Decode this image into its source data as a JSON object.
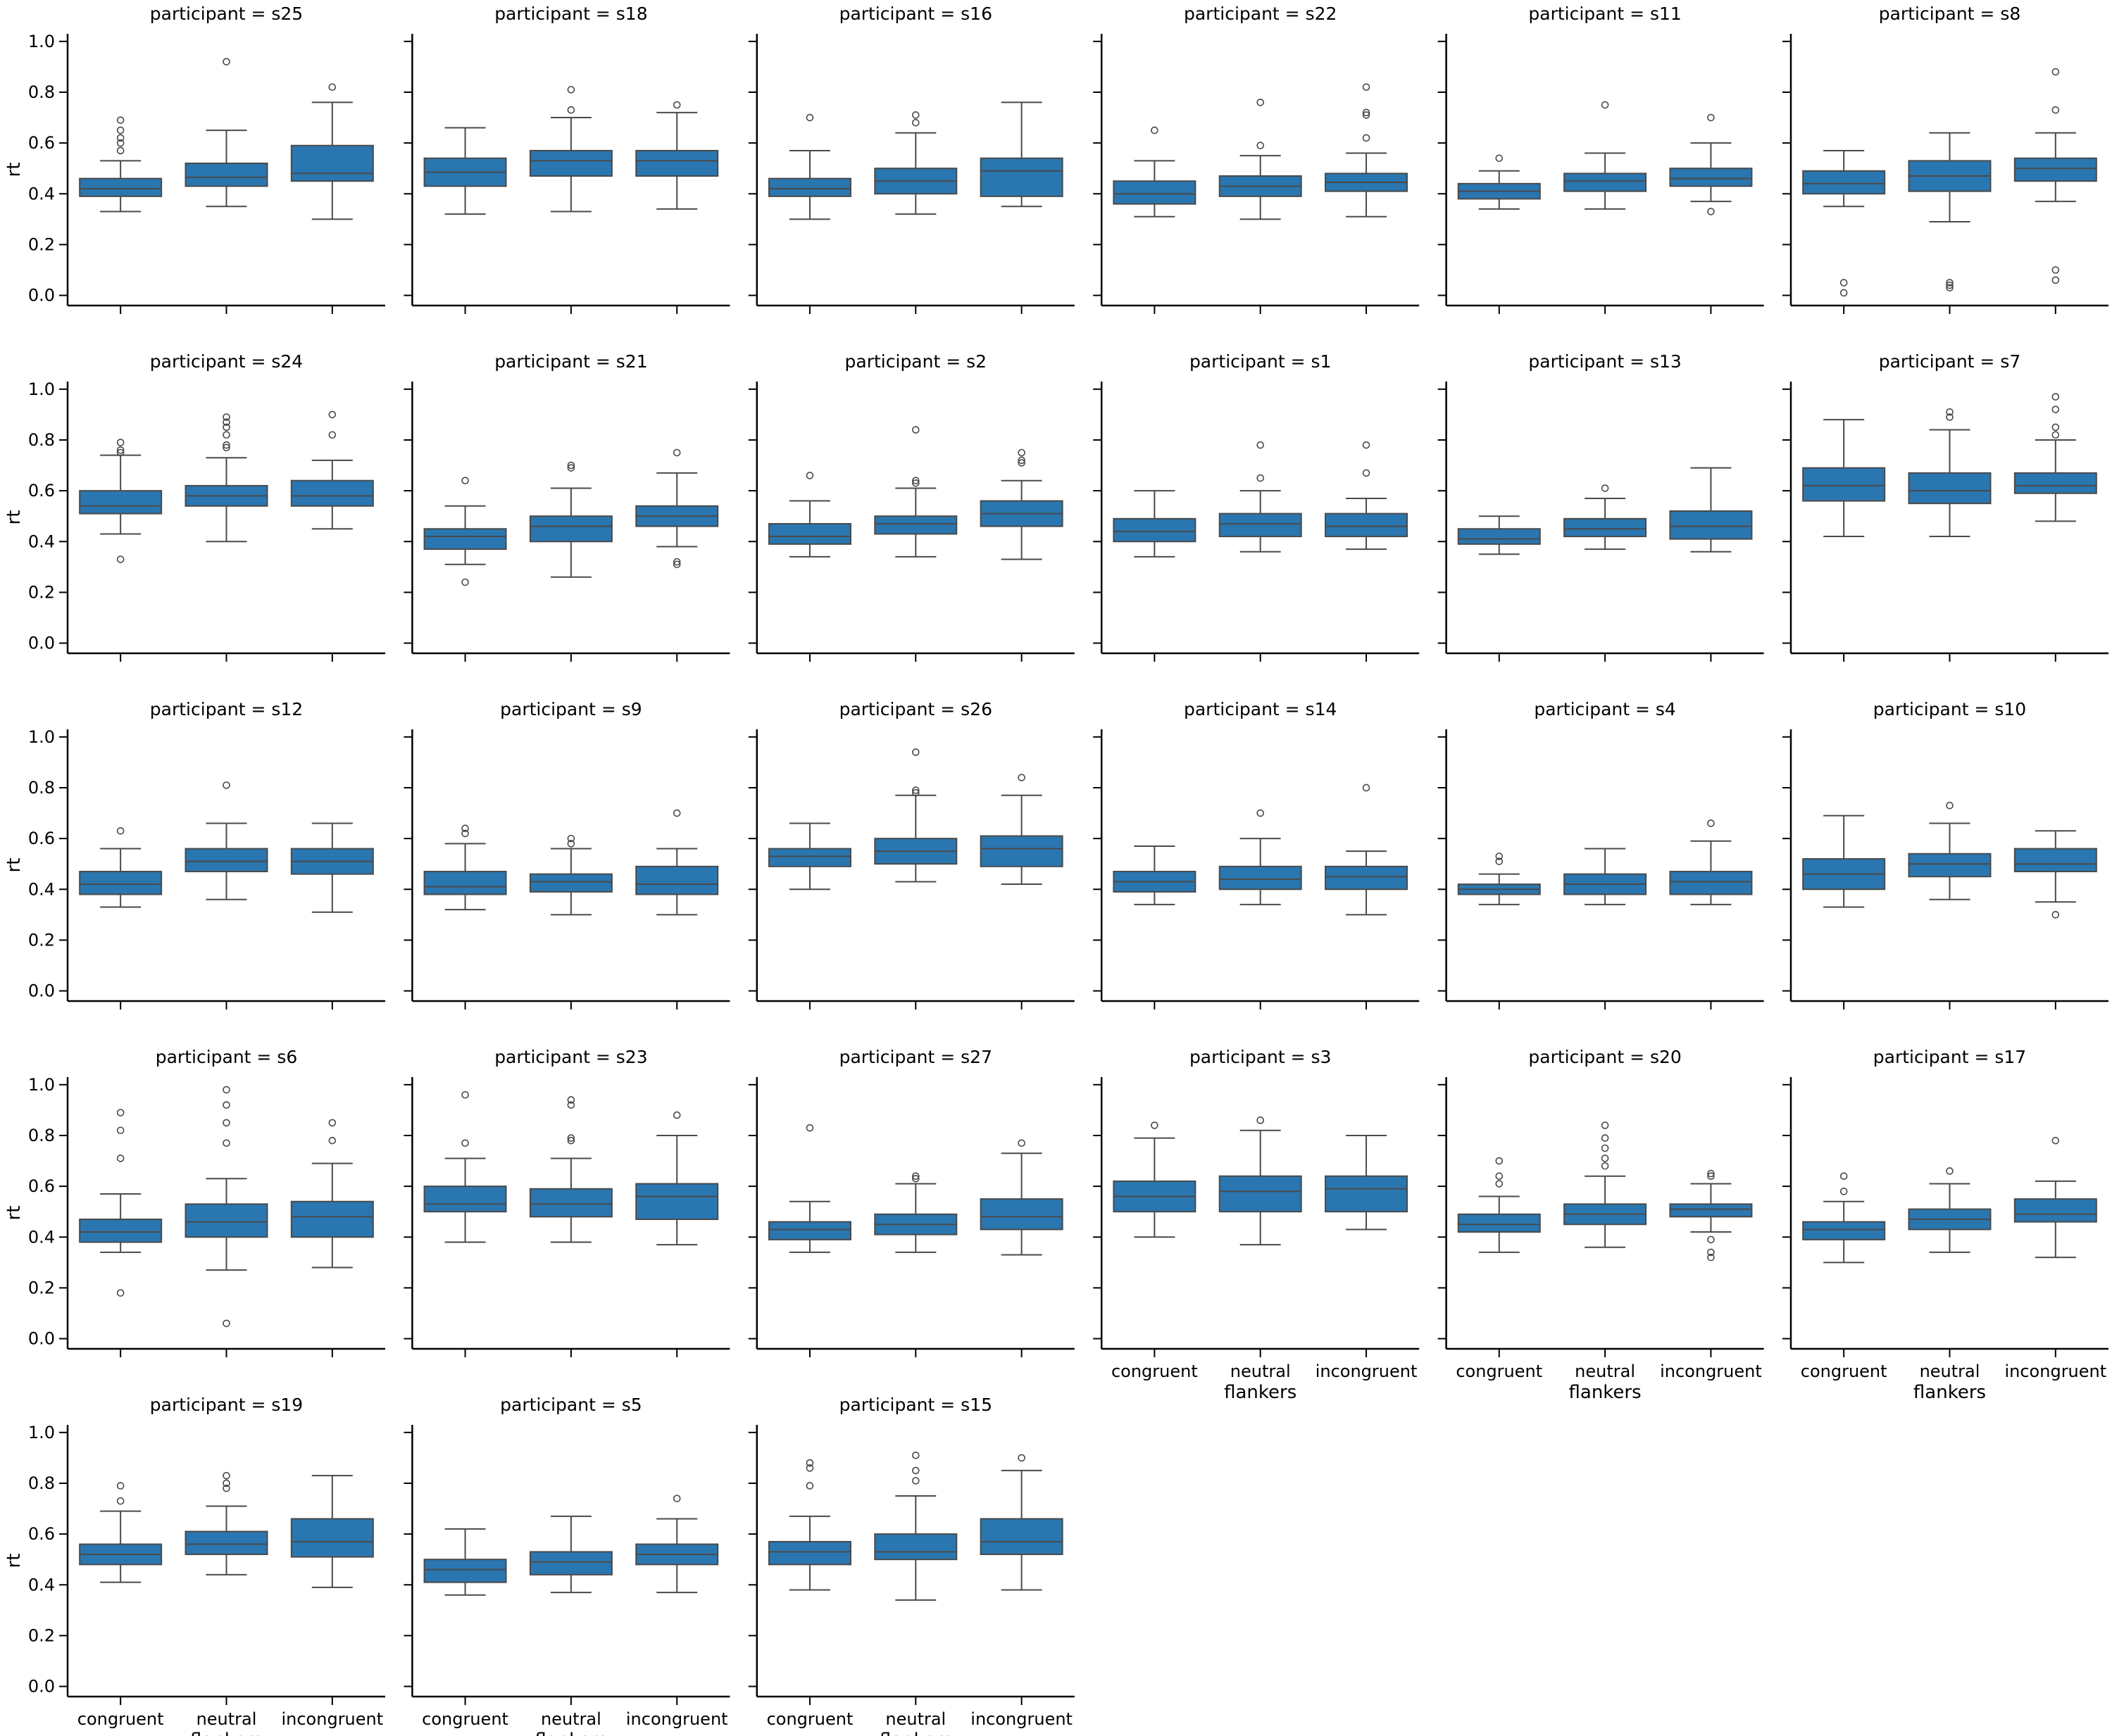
{
  "chart_data": {
    "type": "box",
    "facet_column": "participant",
    "facet_title_template": "participant = {p}",
    "categories": [
      "congruent",
      "neutral",
      "incongruent"
    ],
    "xlabel": "flankers",
    "ylabel": "rt",
    "ylim": [
      -0.04,
      1.03
    ],
    "yticks": [
      "0.0",
      "0.2",
      "0.4",
      "0.6",
      "0.8",
      "1.0"
    ],
    "grid": false,
    "box_color": "#2a76b0",
    "line_color": "#4a4a4a",
    "axis_color": "#000000",
    "panels": [
      {
        "participant": "s25",
        "boxes": [
          {
            "wl": 0.33,
            "q1": 0.39,
            "med": 0.42,
            "q3": 0.46,
            "wh": 0.53,
            "fliers": [
              0.57,
              0.6,
              0.62,
              0.65,
              0.69
            ]
          },
          {
            "wl": 0.35,
            "q1": 0.43,
            "med": 0.465,
            "q3": 0.52,
            "wh": 0.65,
            "fliers": [
              0.92
            ]
          },
          {
            "wl": 0.3,
            "q1": 0.45,
            "med": 0.48,
            "q3": 0.59,
            "wh": 0.76,
            "fliers": [
              0.82
            ]
          }
        ]
      },
      {
        "participant": "s18",
        "boxes": [
          {
            "wl": 0.32,
            "q1": 0.43,
            "med": 0.485,
            "q3": 0.54,
            "wh": 0.66,
            "fliers": []
          },
          {
            "wl": 0.33,
            "q1": 0.47,
            "med": 0.53,
            "q3": 0.57,
            "wh": 0.7,
            "fliers": [
              0.73,
              0.81
            ]
          },
          {
            "wl": 0.34,
            "q1": 0.47,
            "med": 0.53,
            "q3": 0.57,
            "wh": 0.72,
            "fliers": [
              0.75
            ]
          }
        ]
      },
      {
        "participant": "s16",
        "boxes": [
          {
            "wl": 0.3,
            "q1": 0.39,
            "med": 0.42,
            "q3": 0.46,
            "wh": 0.57,
            "fliers": [
              0.7
            ]
          },
          {
            "wl": 0.32,
            "q1": 0.4,
            "med": 0.45,
            "q3": 0.5,
            "wh": 0.64,
            "fliers": [
              0.68,
              0.71
            ]
          },
          {
            "wl": 0.35,
            "q1": 0.39,
            "med": 0.49,
            "q3": 0.54,
            "wh": 0.76,
            "fliers": []
          }
        ]
      },
      {
        "participant": "s22",
        "boxes": [
          {
            "wl": 0.31,
            "q1": 0.36,
            "med": 0.4,
            "q3": 0.45,
            "wh": 0.53,
            "fliers": [
              0.65
            ]
          },
          {
            "wl": 0.3,
            "q1": 0.39,
            "med": 0.43,
            "q3": 0.47,
            "wh": 0.55,
            "fliers": [
              0.59,
              0.76
            ]
          },
          {
            "wl": 0.31,
            "q1": 0.41,
            "med": 0.445,
            "q3": 0.48,
            "wh": 0.56,
            "fliers": [
              0.62,
              0.71,
              0.72,
              0.82
            ]
          }
        ]
      },
      {
        "participant": "s11",
        "boxes": [
          {
            "wl": 0.34,
            "q1": 0.38,
            "med": 0.41,
            "q3": 0.44,
            "wh": 0.49,
            "fliers": [
              0.54
            ]
          },
          {
            "wl": 0.34,
            "q1": 0.41,
            "med": 0.45,
            "q3": 0.48,
            "wh": 0.56,
            "fliers": [
              0.75
            ]
          },
          {
            "wl": 0.37,
            "q1": 0.43,
            "med": 0.46,
            "q3": 0.5,
            "wh": 0.6,
            "fliers": [
              0.33,
              0.7
            ]
          }
        ]
      },
      {
        "participant": "s8",
        "boxes": [
          {
            "wl": 0.35,
            "q1": 0.4,
            "med": 0.44,
            "q3": 0.49,
            "wh": 0.57,
            "fliers": [
              0.01,
              0.05
            ]
          },
          {
            "wl": 0.29,
            "q1": 0.41,
            "med": 0.47,
            "q3": 0.53,
            "wh": 0.64,
            "fliers": [
              0.03,
              0.04,
              0.05
            ]
          },
          {
            "wl": 0.37,
            "q1": 0.45,
            "med": 0.5,
            "q3": 0.54,
            "wh": 0.64,
            "fliers": [
              0.06,
              0.1,
              0.73,
              0.88
            ]
          }
        ]
      },
      {
        "participant": "s24",
        "boxes": [
          {
            "wl": 0.43,
            "q1": 0.51,
            "med": 0.54,
            "q3": 0.6,
            "wh": 0.74,
            "fliers": [
              0.33,
              0.75,
              0.76,
              0.79
            ]
          },
          {
            "wl": 0.4,
            "q1": 0.54,
            "med": 0.58,
            "q3": 0.62,
            "wh": 0.73,
            "fliers": [
              0.77,
              0.78,
              0.82,
              0.85,
              0.87,
              0.89
            ]
          },
          {
            "wl": 0.45,
            "q1": 0.54,
            "med": 0.58,
            "q3": 0.64,
            "wh": 0.72,
            "fliers": [
              0.82,
              0.9
            ]
          }
        ]
      },
      {
        "participant": "s21",
        "boxes": [
          {
            "wl": 0.31,
            "q1": 0.37,
            "med": 0.42,
            "q3": 0.45,
            "wh": 0.54,
            "fliers": [
              0.24,
              0.64
            ]
          },
          {
            "wl": 0.26,
            "q1": 0.4,
            "med": 0.46,
            "q3": 0.5,
            "wh": 0.61,
            "fliers": [
              0.69,
              0.7
            ]
          },
          {
            "wl": 0.38,
            "q1": 0.46,
            "med": 0.5,
            "q3": 0.54,
            "wh": 0.67,
            "fliers": [
              0.31,
              0.32,
              0.75
            ]
          }
        ]
      },
      {
        "participant": "s2",
        "boxes": [
          {
            "wl": 0.34,
            "q1": 0.39,
            "med": 0.42,
            "q3": 0.47,
            "wh": 0.56,
            "fliers": [
              0.66
            ]
          },
          {
            "wl": 0.34,
            "q1": 0.43,
            "med": 0.47,
            "q3": 0.5,
            "wh": 0.61,
            "fliers": [
              0.63,
              0.64,
              0.84
            ]
          },
          {
            "wl": 0.33,
            "q1": 0.46,
            "med": 0.51,
            "q3": 0.56,
            "wh": 0.64,
            "fliers": [
              0.71,
              0.72,
              0.75
            ]
          }
        ]
      },
      {
        "participant": "s1",
        "boxes": [
          {
            "wl": 0.34,
            "q1": 0.4,
            "med": 0.44,
            "q3": 0.49,
            "wh": 0.6,
            "fliers": []
          },
          {
            "wl": 0.36,
            "q1": 0.42,
            "med": 0.47,
            "q3": 0.51,
            "wh": 0.6,
            "fliers": [
              0.65,
              0.78
            ]
          },
          {
            "wl": 0.37,
            "q1": 0.42,
            "med": 0.46,
            "q3": 0.51,
            "wh": 0.57,
            "fliers": [
              0.67,
              0.78
            ]
          }
        ]
      },
      {
        "participant": "s13",
        "boxes": [
          {
            "wl": 0.35,
            "q1": 0.39,
            "med": 0.41,
            "q3": 0.45,
            "wh": 0.5,
            "fliers": []
          },
          {
            "wl": 0.37,
            "q1": 0.42,
            "med": 0.45,
            "q3": 0.49,
            "wh": 0.57,
            "fliers": [
              0.61
            ]
          },
          {
            "wl": 0.36,
            "q1": 0.41,
            "med": 0.46,
            "q3": 0.52,
            "wh": 0.69,
            "fliers": []
          }
        ]
      },
      {
        "participant": "s7",
        "boxes": [
          {
            "wl": 0.42,
            "q1": 0.56,
            "med": 0.62,
            "q3": 0.69,
            "wh": 0.88,
            "fliers": []
          },
          {
            "wl": 0.42,
            "q1": 0.55,
            "med": 0.6,
            "q3": 0.67,
            "wh": 0.84,
            "fliers": [
              0.89,
              0.91
            ]
          },
          {
            "wl": 0.48,
            "q1": 0.59,
            "med": 0.62,
            "q3": 0.67,
            "wh": 0.8,
            "fliers": [
              0.82,
              0.85,
              0.92,
              0.97
            ]
          }
        ]
      },
      {
        "participant": "s12",
        "boxes": [
          {
            "wl": 0.33,
            "q1": 0.38,
            "med": 0.42,
            "q3": 0.47,
            "wh": 0.56,
            "fliers": [
              0.63
            ]
          },
          {
            "wl": 0.36,
            "q1": 0.47,
            "med": 0.51,
            "q3": 0.56,
            "wh": 0.66,
            "fliers": [
              0.81
            ]
          },
          {
            "wl": 0.31,
            "q1": 0.46,
            "med": 0.51,
            "q3": 0.56,
            "wh": 0.66,
            "fliers": []
          }
        ]
      },
      {
        "participant": "s9",
        "boxes": [
          {
            "wl": 0.32,
            "q1": 0.38,
            "med": 0.41,
            "q3": 0.47,
            "wh": 0.58,
            "fliers": [
              0.62,
              0.64
            ]
          },
          {
            "wl": 0.3,
            "q1": 0.39,
            "med": 0.43,
            "q3": 0.46,
            "wh": 0.56,
            "fliers": [
              0.58,
              0.6
            ]
          },
          {
            "wl": 0.3,
            "q1": 0.38,
            "med": 0.42,
            "q3": 0.49,
            "wh": 0.56,
            "fliers": [
              0.7
            ]
          }
        ]
      },
      {
        "participant": "s26",
        "boxes": [
          {
            "wl": 0.4,
            "q1": 0.49,
            "med": 0.53,
            "q3": 0.56,
            "wh": 0.66,
            "fliers": []
          },
          {
            "wl": 0.43,
            "q1": 0.5,
            "med": 0.55,
            "q3": 0.6,
            "wh": 0.77,
            "fliers": [
              0.78,
              0.79,
              0.94
            ]
          },
          {
            "wl": 0.42,
            "q1": 0.49,
            "med": 0.56,
            "q3": 0.61,
            "wh": 0.77,
            "fliers": [
              0.84
            ]
          }
        ]
      },
      {
        "participant": "s14",
        "boxes": [
          {
            "wl": 0.34,
            "q1": 0.39,
            "med": 0.43,
            "q3": 0.47,
            "wh": 0.57,
            "fliers": []
          },
          {
            "wl": 0.34,
            "q1": 0.4,
            "med": 0.44,
            "q3": 0.49,
            "wh": 0.6,
            "fliers": [
              0.7
            ]
          },
          {
            "wl": 0.3,
            "q1": 0.4,
            "med": 0.45,
            "q3": 0.49,
            "wh": 0.55,
            "fliers": [
              0.8
            ]
          }
        ]
      },
      {
        "participant": "s4",
        "boxes": [
          {
            "wl": 0.34,
            "q1": 0.38,
            "med": 0.4,
            "q3": 0.42,
            "wh": 0.46,
            "fliers": [
              0.51,
              0.53
            ]
          },
          {
            "wl": 0.34,
            "q1": 0.38,
            "med": 0.42,
            "q3": 0.46,
            "wh": 0.56,
            "fliers": []
          },
          {
            "wl": 0.34,
            "q1": 0.38,
            "med": 0.43,
            "q3": 0.47,
            "wh": 0.59,
            "fliers": [
              0.66
            ]
          }
        ]
      },
      {
        "participant": "s10",
        "boxes": [
          {
            "wl": 0.33,
            "q1": 0.4,
            "med": 0.46,
            "q3": 0.52,
            "wh": 0.69,
            "fliers": []
          },
          {
            "wl": 0.36,
            "q1": 0.45,
            "med": 0.5,
            "q3": 0.54,
            "wh": 0.66,
            "fliers": [
              0.73
            ]
          },
          {
            "wl": 0.35,
            "q1": 0.47,
            "med": 0.5,
            "q3": 0.56,
            "wh": 0.63,
            "fliers": [
              0.3
            ]
          }
        ]
      },
      {
        "participant": "s6",
        "boxes": [
          {
            "wl": 0.34,
            "q1": 0.38,
            "med": 0.42,
            "q3": 0.47,
            "wh": 0.57,
            "fliers": [
              0.18,
              0.71,
              0.82,
              0.89
            ]
          },
          {
            "wl": 0.27,
            "q1": 0.4,
            "med": 0.46,
            "q3": 0.53,
            "wh": 0.63,
            "fliers": [
              0.06,
              0.77,
              0.85,
              0.92,
              0.98
            ]
          },
          {
            "wl": 0.28,
            "q1": 0.4,
            "med": 0.48,
            "q3": 0.54,
            "wh": 0.69,
            "fliers": [
              0.78,
              0.85
            ]
          }
        ]
      },
      {
        "participant": "s23",
        "boxes": [
          {
            "wl": 0.38,
            "q1": 0.5,
            "med": 0.53,
            "q3": 0.6,
            "wh": 0.71,
            "fliers": [
              0.77,
              0.96
            ]
          },
          {
            "wl": 0.38,
            "q1": 0.48,
            "med": 0.53,
            "q3": 0.59,
            "wh": 0.71,
            "fliers": [
              0.78,
              0.79,
              0.92,
              0.94
            ]
          },
          {
            "wl": 0.37,
            "q1": 0.47,
            "med": 0.56,
            "q3": 0.61,
            "wh": 0.8,
            "fliers": [
              0.88
            ]
          }
        ]
      },
      {
        "participant": "s27",
        "boxes": [
          {
            "wl": 0.34,
            "q1": 0.39,
            "med": 0.43,
            "q3": 0.46,
            "wh": 0.54,
            "fliers": [
              0.83
            ]
          },
          {
            "wl": 0.34,
            "q1": 0.41,
            "med": 0.45,
            "q3": 0.49,
            "wh": 0.61,
            "fliers": [
              0.63,
              0.64
            ]
          },
          {
            "wl": 0.33,
            "q1": 0.43,
            "med": 0.48,
            "q3": 0.55,
            "wh": 0.73,
            "fliers": [
              0.77
            ]
          }
        ]
      },
      {
        "participant": "s3",
        "boxes": [
          {
            "wl": 0.4,
            "q1": 0.5,
            "med": 0.56,
            "q3": 0.62,
            "wh": 0.79,
            "fliers": [
              0.84
            ]
          },
          {
            "wl": 0.37,
            "q1": 0.5,
            "med": 0.58,
            "q3": 0.64,
            "wh": 0.82,
            "fliers": [
              0.86
            ]
          },
          {
            "wl": 0.43,
            "q1": 0.5,
            "med": 0.59,
            "q3": 0.64,
            "wh": 0.8,
            "fliers": []
          }
        ]
      },
      {
        "participant": "s20",
        "boxes": [
          {
            "wl": 0.34,
            "q1": 0.42,
            "med": 0.45,
            "q3": 0.49,
            "wh": 0.56,
            "fliers": [
              0.61,
              0.64,
              0.7
            ]
          },
          {
            "wl": 0.36,
            "q1": 0.45,
            "med": 0.49,
            "q3": 0.53,
            "wh": 0.64,
            "fliers": [
              0.68,
              0.71,
              0.75,
              0.79,
              0.84
            ]
          },
          {
            "wl": 0.42,
            "q1": 0.48,
            "med": 0.51,
            "q3": 0.53,
            "wh": 0.61,
            "fliers": [
              0.32,
              0.34,
              0.39,
              0.64,
              0.65
            ]
          }
        ]
      },
      {
        "participant": "s17",
        "boxes": [
          {
            "wl": 0.3,
            "q1": 0.39,
            "med": 0.43,
            "q3": 0.46,
            "wh": 0.54,
            "fliers": [
              0.58,
              0.64
            ]
          },
          {
            "wl": 0.34,
            "q1": 0.43,
            "med": 0.47,
            "q3": 0.51,
            "wh": 0.61,
            "fliers": [
              0.66
            ]
          },
          {
            "wl": 0.32,
            "q1": 0.46,
            "med": 0.49,
            "q3": 0.55,
            "wh": 0.62,
            "fliers": [
              0.78
            ]
          }
        ]
      },
      {
        "participant": "s19",
        "boxes": [
          {
            "wl": 0.41,
            "q1": 0.48,
            "med": 0.52,
            "q3": 0.56,
            "wh": 0.69,
            "fliers": [
              0.73,
              0.79
            ]
          },
          {
            "wl": 0.44,
            "q1": 0.52,
            "med": 0.56,
            "q3": 0.61,
            "wh": 0.71,
            "fliers": [
              0.78,
              0.8,
              0.83
            ]
          },
          {
            "wl": 0.39,
            "q1": 0.51,
            "med": 0.57,
            "q3": 0.66,
            "wh": 0.83,
            "fliers": []
          }
        ]
      },
      {
        "participant": "s5",
        "boxes": [
          {
            "wl": 0.36,
            "q1": 0.41,
            "med": 0.46,
            "q3": 0.5,
            "wh": 0.62,
            "fliers": []
          },
          {
            "wl": 0.37,
            "q1": 0.44,
            "med": 0.49,
            "q3": 0.53,
            "wh": 0.67,
            "fliers": []
          },
          {
            "wl": 0.37,
            "q1": 0.48,
            "med": 0.52,
            "q3": 0.56,
            "wh": 0.66,
            "fliers": [
              0.74
            ]
          }
        ]
      },
      {
        "participant": "s15",
        "boxes": [
          {
            "wl": 0.38,
            "q1": 0.48,
            "med": 0.53,
            "q3": 0.57,
            "wh": 0.67,
            "fliers": [
              0.79,
              0.86,
              0.88
            ]
          },
          {
            "wl": 0.34,
            "q1": 0.5,
            "med": 0.53,
            "q3": 0.6,
            "wh": 0.75,
            "fliers": [
              0.81,
              0.85,
              0.91
            ]
          },
          {
            "wl": 0.38,
            "q1": 0.52,
            "med": 0.57,
            "q3": 0.66,
            "wh": 0.85,
            "fliers": [
              0.9
            ]
          }
        ]
      }
    ]
  }
}
